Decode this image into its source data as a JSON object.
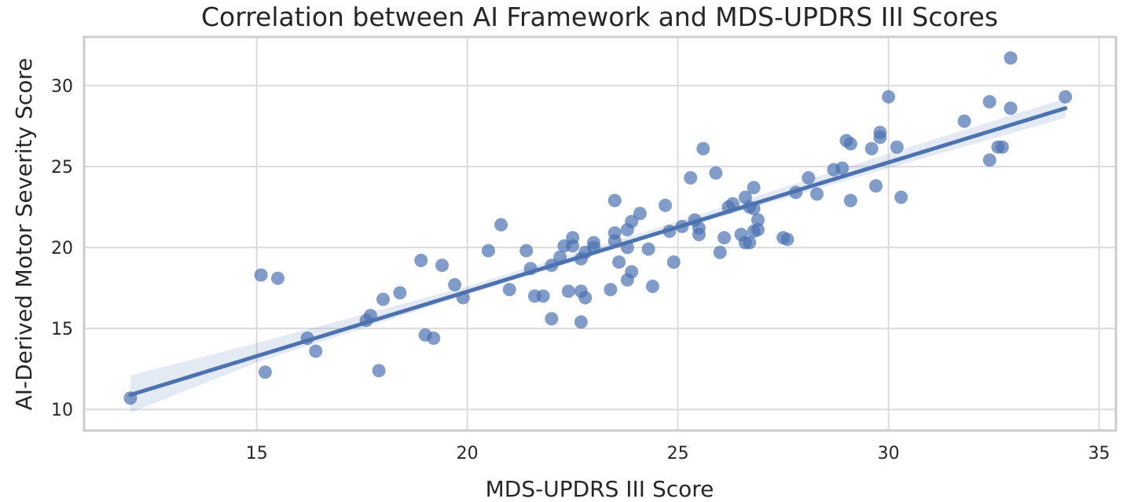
{
  "chart_data": {
    "type": "scatter",
    "title": "Correlation between AI Framework and MDS-UPDRS III Scores",
    "xlabel": "MDS-UPDRS III Score",
    "ylabel": "AI-Derived Motor Severity Score",
    "xlim": [
      10.9,
      35.4
    ],
    "ylim": [
      8.7,
      33.0
    ],
    "x_ticks": [
      15,
      20,
      25,
      30,
      35
    ],
    "y_ticks": [
      10,
      15,
      20,
      25,
      30
    ],
    "grid": true,
    "legend": "none",
    "marker_color": "#4c72b0",
    "marker_opacity": 0.7,
    "points": [
      {
        "x": 12.0,
        "y": 10.7
      },
      {
        "x": 15.1,
        "y": 18.3
      },
      {
        "x": 15.2,
        "y": 12.3
      },
      {
        "x": 15.5,
        "y": 18.1
      },
      {
        "x": 16.2,
        "y": 14.4
      },
      {
        "x": 16.4,
        "y": 13.6
      },
      {
        "x": 17.6,
        "y": 15.5
      },
      {
        "x": 17.7,
        "y": 15.8
      },
      {
        "x": 17.9,
        "y": 12.4
      },
      {
        "x": 18.0,
        "y": 16.8
      },
      {
        "x": 18.4,
        "y": 17.2
      },
      {
        "x": 18.9,
        "y": 19.2
      },
      {
        "x": 19.0,
        "y": 14.6
      },
      {
        "x": 19.2,
        "y": 14.4
      },
      {
        "x": 19.4,
        "y": 18.9
      },
      {
        "x": 19.7,
        "y": 17.7
      },
      {
        "x": 19.9,
        "y": 16.9
      },
      {
        "x": 20.5,
        "y": 19.8
      },
      {
        "x": 20.8,
        "y": 21.4
      },
      {
        "x": 21.0,
        "y": 17.4
      },
      {
        "x": 21.4,
        "y": 19.8
      },
      {
        "x": 21.5,
        "y": 18.7
      },
      {
        "x": 21.6,
        "y": 17.0
      },
      {
        "x": 21.8,
        "y": 17.0
      },
      {
        "x": 22.0,
        "y": 18.9
      },
      {
        "x": 22.0,
        "y": 15.6
      },
      {
        "x": 22.2,
        "y": 19.4
      },
      {
        "x": 22.3,
        "y": 20.1
      },
      {
        "x": 22.4,
        "y": 17.3
      },
      {
        "x": 22.5,
        "y": 20.1
      },
      {
        "x": 22.5,
        "y": 20.6
      },
      {
        "x": 22.7,
        "y": 17.3
      },
      {
        "x": 22.7,
        "y": 19.3
      },
      {
        "x": 22.8,
        "y": 19.7
      },
      {
        "x": 22.8,
        "y": 16.9
      },
      {
        "x": 22.7,
        "y": 15.4
      },
      {
        "x": 23.0,
        "y": 20.0
      },
      {
        "x": 23.0,
        "y": 20.3
      },
      {
        "x": 23.4,
        "y": 17.4
      },
      {
        "x": 23.5,
        "y": 20.9
      },
      {
        "x": 23.5,
        "y": 20.4
      },
      {
        "x": 23.5,
        "y": 22.9
      },
      {
        "x": 23.6,
        "y": 19.1
      },
      {
        "x": 23.8,
        "y": 21.1
      },
      {
        "x": 23.8,
        "y": 20.0
      },
      {
        "x": 23.8,
        "y": 18.0
      },
      {
        "x": 23.9,
        "y": 18.5
      },
      {
        "x": 23.9,
        "y": 21.6
      },
      {
        "x": 24.1,
        "y": 22.1
      },
      {
        "x": 24.3,
        "y": 19.9
      },
      {
        "x": 24.4,
        "y": 17.6
      },
      {
        "x": 24.7,
        "y": 22.6
      },
      {
        "x": 24.8,
        "y": 21.0
      },
      {
        "x": 24.9,
        "y": 19.1
      },
      {
        "x": 25.1,
        "y": 21.3
      },
      {
        "x": 25.3,
        "y": 24.3
      },
      {
        "x": 25.4,
        "y": 21.7
      },
      {
        "x": 25.5,
        "y": 20.8
      },
      {
        "x": 25.5,
        "y": 21.2
      },
      {
        "x": 25.6,
        "y": 26.1
      },
      {
        "x": 25.9,
        "y": 24.6
      },
      {
        "x": 26.0,
        "y": 19.7
      },
      {
        "x": 26.1,
        "y": 20.6
      },
      {
        "x": 26.2,
        "y": 22.5
      },
      {
        "x": 26.3,
        "y": 22.7
      },
      {
        "x": 26.5,
        "y": 20.8
      },
      {
        "x": 26.6,
        "y": 20.3
      },
      {
        "x": 26.6,
        "y": 23.1
      },
      {
        "x": 26.7,
        "y": 22.5
      },
      {
        "x": 26.7,
        "y": 20.3
      },
      {
        "x": 26.8,
        "y": 23.7
      },
      {
        "x": 26.8,
        "y": 21.0
      },
      {
        "x": 26.8,
        "y": 22.4
      },
      {
        "x": 26.9,
        "y": 21.1
      },
      {
        "x": 26.9,
        "y": 21.7
      },
      {
        "x": 27.5,
        "y": 20.6
      },
      {
        "x": 27.6,
        "y": 20.5
      },
      {
        "x": 27.8,
        "y": 23.4
      },
      {
        "x": 28.1,
        "y": 24.3
      },
      {
        "x": 28.3,
        "y": 23.3
      },
      {
        "x": 28.7,
        "y": 24.8
      },
      {
        "x": 28.9,
        "y": 24.9
      },
      {
        "x": 29.0,
        "y": 26.6
      },
      {
        "x": 29.1,
        "y": 26.4
      },
      {
        "x": 29.1,
        "y": 22.9
      },
      {
        "x": 29.6,
        "y": 26.1
      },
      {
        "x": 29.7,
        "y": 23.8
      },
      {
        "x": 29.8,
        "y": 26.8
      },
      {
        "x": 29.8,
        "y": 27.1
      },
      {
        "x": 30.0,
        "y": 29.3
      },
      {
        "x": 30.2,
        "y": 26.2
      },
      {
        "x": 30.3,
        "y": 23.1
      },
      {
        "x": 31.8,
        "y": 27.8
      },
      {
        "x": 32.4,
        "y": 29.0
      },
      {
        "x": 32.4,
        "y": 25.4
      },
      {
        "x": 32.6,
        "y": 26.2
      },
      {
        "x": 32.7,
        "y": 26.2
      },
      {
        "x": 32.9,
        "y": 28.6
      },
      {
        "x": 32.9,
        "y": 31.7
      },
      {
        "x": 34.2,
        "y": 29.3
      }
    ],
    "regression_line": {
      "x": [
        12.0,
        34.2
      ],
      "y": [
        10.9,
        28.6
      ],
      "color": "#4c72b0"
    },
    "confidence_band": {
      "x": [
        12.0,
        15.0,
        20.0,
        25.0,
        30.0,
        34.2
      ],
      "lower": [
        9.8,
        12.9,
        17.1,
        21.1,
        24.9,
        28.0
      ],
      "upper": [
        12.1,
        14.1,
        17.6,
        21.6,
        25.8,
        29.2
      ],
      "color": "#4c72b0"
    }
  }
}
